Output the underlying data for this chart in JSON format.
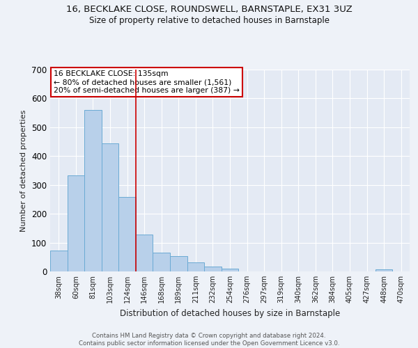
{
  "title": "16, BECKLAKE CLOSE, ROUNDSWELL, BARNSTAPLE, EX31 3UZ",
  "subtitle": "Size of property relative to detached houses in Barnstaple",
  "xlabel": "Distribution of detached houses by size in Barnstaple",
  "ylabel": "Number of detached properties",
  "categories": [
    "38sqm",
    "60sqm",
    "81sqm",
    "103sqm",
    "124sqm",
    "146sqm",
    "168sqm",
    "189sqm",
    "211sqm",
    "232sqm",
    "254sqm",
    "276sqm",
    "297sqm",
    "319sqm",
    "340sqm",
    "362sqm",
    "384sqm",
    "405sqm",
    "427sqm",
    "448sqm",
    "470sqm"
  ],
  "values": [
    72,
    332,
    560,
    445,
    258,
    127,
    65,
    52,
    32,
    18,
    10,
    0,
    0,
    0,
    0,
    0,
    0,
    0,
    0,
    7,
    0
  ],
  "bar_color": "#b8d0ea",
  "bar_edge_color": "#6aaad4",
  "red_line_x": 4.5,
  "annotation_text": "16 BECKLAKE CLOSE: 135sqm\n← 80% of detached houses are smaller (1,561)\n20% of semi-detached houses are larger (387) →",
  "annotation_box_color": "#ffffff",
  "annotation_box_edge": "#cc0000",
  "vline_color": "#cc0000",
  "ylim": [
    0,
    700
  ],
  "yticks": [
    0,
    100,
    200,
    300,
    400,
    500,
    600,
    700
  ],
  "footer": "Contains HM Land Registry data © Crown copyright and database right 2024.\nContains public sector information licensed under the Open Government Licence v3.0.",
  "background_color": "#eef2f8",
  "plot_background": "#e4eaf4"
}
